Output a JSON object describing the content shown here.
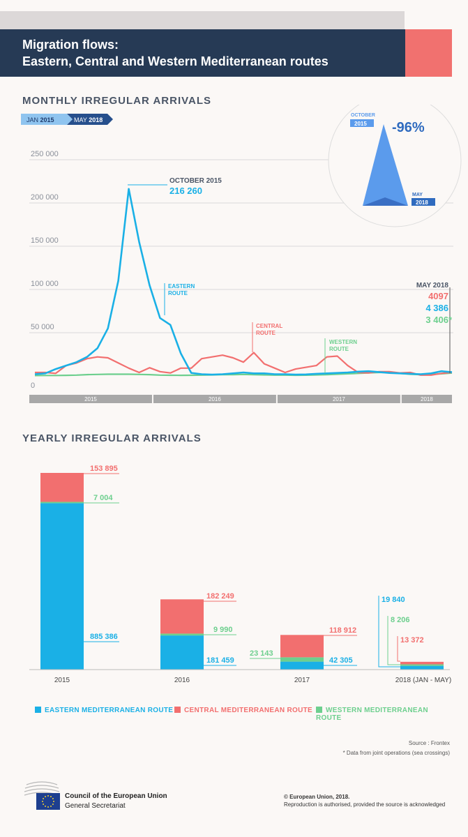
{
  "header": {
    "title_line1": "Migration flows:",
    "title_line2": "Eastern, Central and Western Mediterranean routes"
  },
  "monthly": {
    "section_title": "MONTHLY IRREGULAR ARRIVALS",
    "range_start_month": "JAN",
    "range_start_year": "2015",
    "range_end_month": "MAY",
    "range_end_year": "2018",
    "peak_label": "OCTOBER 2015",
    "peak_value": "216 260",
    "eastern_label_1": "EASTERN",
    "eastern_label_2": "ROUTE",
    "central_label_1": "CENTRAL",
    "central_label_2": "ROUTE",
    "western_label_1": "WESTERN",
    "western_label_2": "ROUTE",
    "latest_label": "MAY 2018",
    "latest_central": "4097",
    "latest_eastern": "4 386",
    "latest_western": "3 406*",
    "inset_start_month": "OCTOBER",
    "inset_start_year": "2015",
    "inset_end_month": "MAY",
    "inset_end_year": "2018",
    "inset_change": "-96%",
    "colors": {
      "eastern": "#1ab0e6",
      "central": "#f26f6f",
      "western": "#6dcf8e"
    }
  },
  "chart_data": [
    {
      "type": "line",
      "title": "MONTHLY IRREGULAR ARRIVALS",
      "ylim": [
        0,
        250000
      ],
      "yticks": [
        "0",
        "50 000",
        "100 000",
        "150 000",
        "200 000",
        "250 000"
      ],
      "ytick_values": [
        0,
        50000,
        100000,
        150000,
        200000,
        250000
      ],
      "year_bands": [
        "2015",
        "2016",
        "2017",
        "2018"
      ],
      "x": [
        "2015-01",
        "2015-02",
        "2015-03",
        "2015-04",
        "2015-05",
        "2015-06",
        "2015-07",
        "2015-08",
        "2015-09",
        "2015-10",
        "2015-11",
        "2015-12",
        "2016-01",
        "2016-02",
        "2016-03",
        "2016-04",
        "2016-05",
        "2016-06",
        "2016-07",
        "2016-08",
        "2016-09",
        "2016-10",
        "2016-11",
        "2016-12",
        "2017-01",
        "2017-02",
        "2017-03",
        "2017-04",
        "2017-05",
        "2017-06",
        "2017-07",
        "2017-08",
        "2017-09",
        "2017-10",
        "2017-11",
        "2017-12",
        "2018-01",
        "2018-02",
        "2018-03",
        "2018-04",
        "2018-05"
      ],
      "series": [
        {
          "name": "EASTERN MEDITERRANEAN ROUTE",
          "color": "#1ab0e6",
          "values": [
            2000,
            3000,
            8000,
            12000,
            16000,
            22000,
            32000,
            55000,
            110000,
            216260,
            155000,
            105000,
            67000,
            59000,
            26000,
            3500,
            2000,
            1500,
            2000,
            3000,
            4000,
            3000,
            3000,
            2000,
            2000,
            1500,
            1800,
            2500,
            3000,
            3500,
            4000,
            5000,
            5500,
            4500,
            3500,
            3000,
            2500,
            2000,
            3000,
            5500,
            4386
          ]
        },
        {
          "name": "CENTRAL MEDITERRANEAN ROUTE",
          "color": "#f26f6f",
          "values": [
            4000,
            4000,
            3000,
            12000,
            15000,
            20000,
            22000,
            21000,
            15000,
            9000,
            4000,
            9500,
            5000,
            3500,
            9000,
            9000,
            20000,
            22000,
            24000,
            21000,
            16000,
            27000,
            14000,
            9000,
            4000,
            8000,
            10000,
            12000,
            22000,
            23000,
            12000,
            4000,
            3500,
            5000,
            5000,
            3500,
            4000,
            1000,
            1000,
            3000,
            4097
          ]
        },
        {
          "name": "WESTERN MEDITERRANEAN ROUTE",
          "color": "#6dcf8e",
          "values": [
            500,
            600,
            600,
            700,
            1000,
            1500,
            1800,
            2000,
            2000,
            2000,
            1800,
            1500,
            1000,
            800,
            700,
            800,
            1000,
            1200,
            1500,
            1500,
            1800,
            1500,
            1200,
            1000,
            1000,
            800,
            900,
            1200,
            1500,
            2000,
            2500,
            3000,
            3500,
            4000,
            4000,
            3000,
            2000,
            1500,
            1800,
            2500,
            3406
          ]
        }
      ]
    },
    {
      "type": "bar",
      "title": "YEARLY IRREGULAR ARRIVALS",
      "categories": [
        "2015",
        "2016",
        "2017",
        "2018 (JAN - MAY)"
      ],
      "series": [
        {
          "name": "EASTERN MEDITERRANEAN ROUTE",
          "color": "#1ab0e6",
          "values": [
            885386,
            181459,
            42305,
            19840
          ],
          "labels": [
            "885 386",
            "181 459",
            "42 305",
            "19 840"
          ]
        },
        {
          "name": "WESTERN MEDITERRANEAN ROUTE",
          "color": "#6dcf8e",
          "values": [
            7004,
            9990,
            23143,
            8206
          ],
          "labels": [
            "7 004",
            "9 990",
            "23 143",
            "8 206"
          ]
        },
        {
          "name": "CENTRAL MEDITERRANEAN ROUTE",
          "color": "#f26f6f",
          "values": [
            153895,
            182249,
            118912,
            13372
          ],
          "labels": [
            "153 895",
            "182 249",
            "118 912",
            "13 372"
          ]
        }
      ]
    }
  ],
  "yearly": {
    "section_title": "YEARLY IRREGULAR ARRIVALS"
  },
  "legend": {
    "eastern": "EASTERN MEDITERRANEAN ROUTE",
    "central": "CENTRAL MEDITERRANEAN ROUTE",
    "western": "WESTERN MEDITERRANEAN ROUTE"
  },
  "notes": {
    "source": "Source : Frontex",
    "footnote": "* Data from joint operations (sea crossings)"
  },
  "footer": {
    "org_line1": "Council of the European Union",
    "org_line2": "General Secretariat",
    "copyright": "© European Union, 2018.",
    "reproduction": "Reproduction is authorised, provided the source is acknowledged"
  }
}
